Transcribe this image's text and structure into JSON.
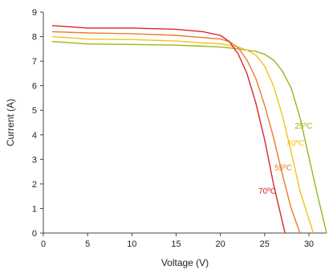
{
  "chart_data": {
    "type": "line",
    "xlabel": "Voltage (V)",
    "ylabel": "Current (A)",
    "xlim": [
      0,
      32
    ],
    "ylim": [
      0,
      9
    ],
    "xticks": [
      0,
      5,
      10,
      15,
      20,
      25,
      30
    ],
    "yticks": [
      0,
      1,
      2,
      3,
      4,
      5,
      6,
      7,
      8,
      9
    ],
    "grid": false,
    "series": [
      {
        "name": "25ºC",
        "color": "#9ab61c",
        "x": [
          1,
          5,
          10,
          15,
          20,
          22,
          24,
          25,
          26,
          27,
          28,
          29,
          30,
          31,
          32
        ],
        "y": [
          7.8,
          7.7,
          7.68,
          7.65,
          7.58,
          7.5,
          7.4,
          7.28,
          7.05,
          6.6,
          5.9,
          4.7,
          3.1,
          1.5,
          0
        ]
      },
      {
        "name": "40ºC",
        "color": "#f3c21b",
        "x": [
          1,
          5,
          10,
          15,
          20,
          22,
          23,
          24,
          25,
          26,
          27,
          28,
          29,
          30.5
        ],
        "y": [
          8.0,
          7.9,
          7.88,
          7.82,
          7.7,
          7.58,
          7.45,
          7.25,
          6.8,
          6.0,
          4.8,
          3.3,
          1.7,
          0
        ]
      },
      {
        "name": "55ºC",
        "color": "#ed7b2d",
        "x": [
          1,
          5,
          10,
          15,
          20,
          21,
          22,
          23,
          24,
          25,
          26,
          27,
          28,
          29
        ],
        "y": [
          8.2,
          8.15,
          8.12,
          8.05,
          7.9,
          7.8,
          7.55,
          7.05,
          6.3,
          5.2,
          3.9,
          2.4,
          1.0,
          0
        ]
      },
      {
        "name": "70ºC",
        "color": "#d9262b",
        "x": [
          1,
          5,
          10,
          15,
          18,
          20,
          21,
          22,
          23,
          24,
          25,
          26,
          27.3
        ],
        "y": [
          8.45,
          8.35,
          8.35,
          8.3,
          8.2,
          8.05,
          7.8,
          7.3,
          6.5,
          5.3,
          3.8,
          2.0,
          0
        ]
      }
    ],
    "series_labels": [
      {
        "text": "25ºC",
        "color": "#9ab61c",
        "x": 29.4,
        "y": 4.25
      },
      {
        "text": "40ºC",
        "color": "#f3c21b",
        "x": 28.5,
        "y": 3.55
      },
      {
        "text": "55ºC",
        "color": "#ed7b2d",
        "x": 27.1,
        "y": 2.55
      },
      {
        "text": "70ºC",
        "color": "#d9262b",
        "x": 25.3,
        "y": 1.6
      }
    ]
  }
}
